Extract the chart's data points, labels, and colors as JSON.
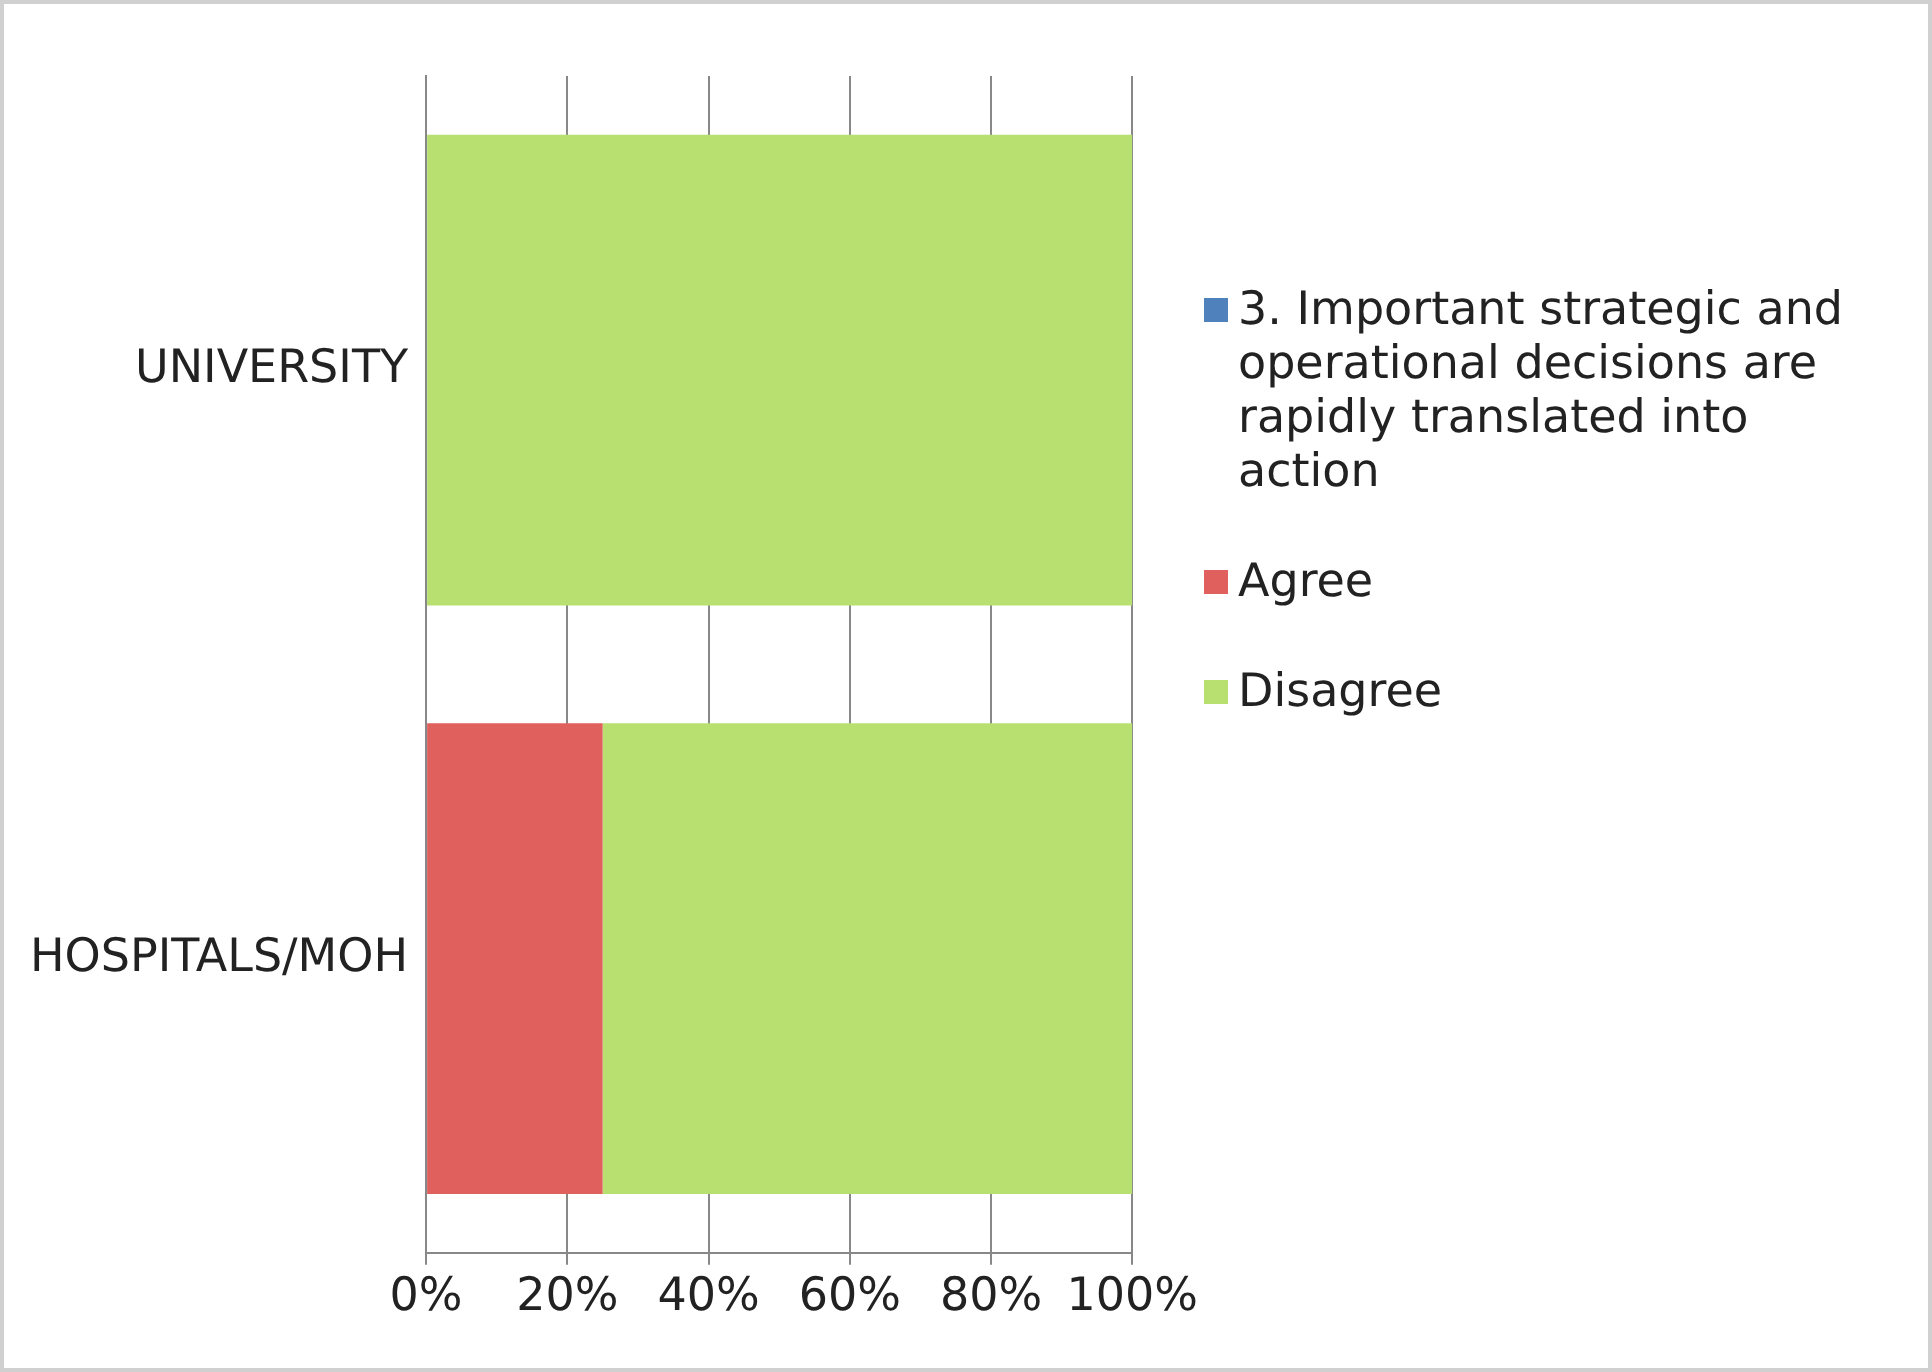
{
  "chart_data": {
    "type": "bar",
    "orientation": "horizontal",
    "stacked": true,
    "categories": [
      "UNIVERSITY",
      "HOSPITALS/MOH"
    ],
    "series": [
      {
        "name": "3. Important strategic and operational decisions are rapidly translated into action",
        "color": "#4f81bd",
        "values": [
          0,
          0
        ]
      },
      {
        "name": "Agree",
        "color": "#e0605e",
        "values": [
          0,
          25
        ]
      },
      {
        "name": "Disagree",
        "color": "#b8e070",
        "values": [
          100,
          75
        ]
      }
    ],
    "xlim": [
      0,
      100
    ],
    "xticks": [
      {
        "value": 0,
        "label": "0%"
      },
      {
        "value": 20,
        "label": "20%"
      },
      {
        "value": 40,
        "label": "40%"
      },
      {
        "value": 60,
        "label": "60%"
      },
      {
        "value": 80,
        "label": "80%"
      },
      {
        "value": 100,
        "label": "100%"
      }
    ],
    "grid": "x",
    "legend": "right"
  }
}
